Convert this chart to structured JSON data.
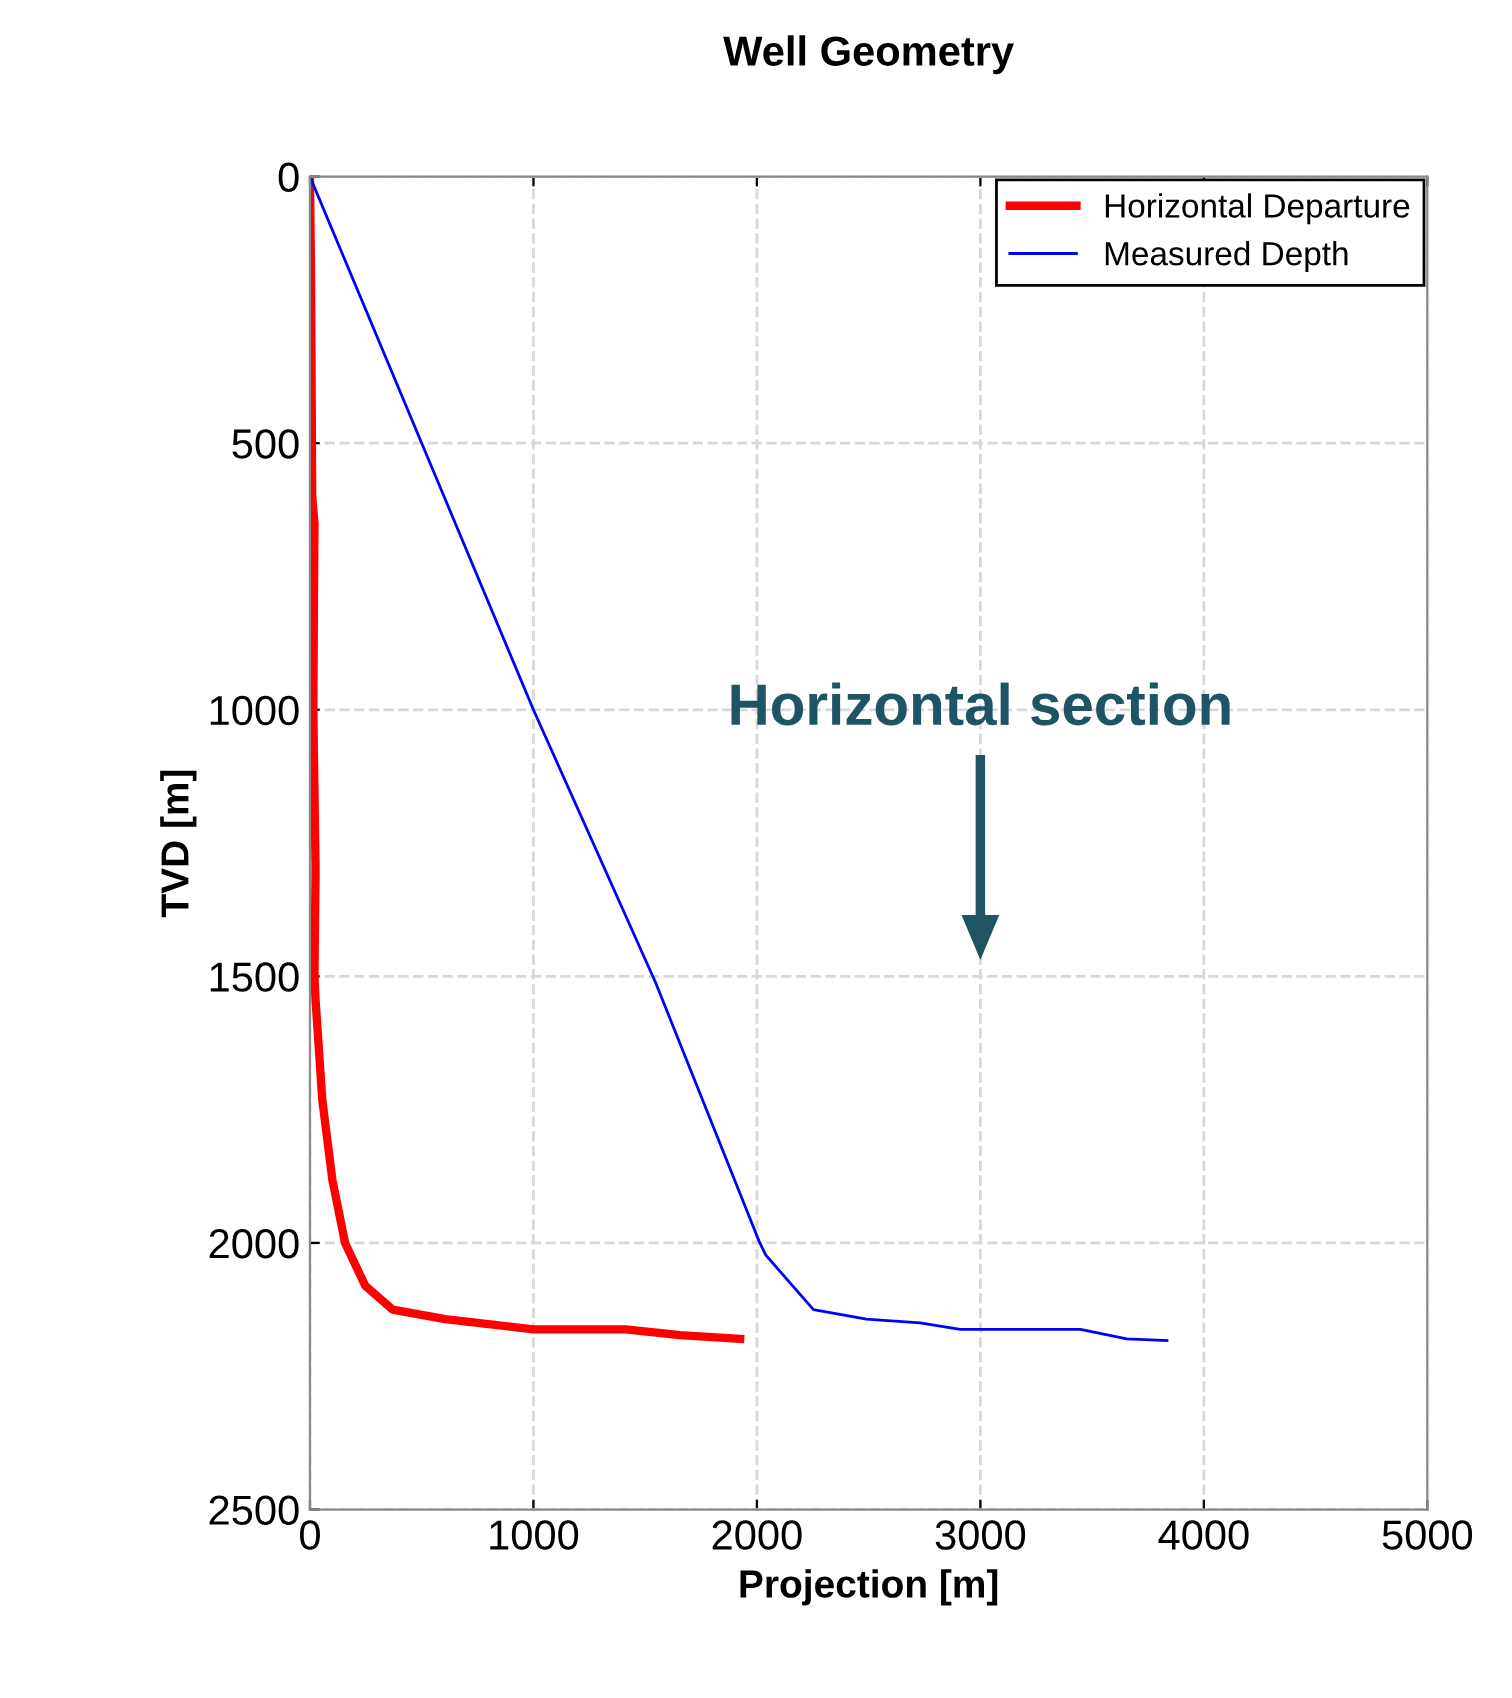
{
  "chart_data": {
    "type": "line",
    "title": "Well Geometry",
    "xlabel": "Projection [m]",
    "ylabel": "TVD [m]",
    "xlim": [
      0,
      5000
    ],
    "xticks": [
      0,
      1000,
      2000,
      3000,
      4000,
      5000
    ],
    "ylim": [
      2500,
      0
    ],
    "yticks": [
      0,
      500,
      1000,
      1500,
      2000,
      2500
    ],
    "grid": true,
    "legend": "top right",
    "line_style": "solid",
    "annotations": [
      "Horizontal section"
    ],
    "series": [
      {
        "name": "Horizontal Departure",
        "color": "#ff0000",
        "x": [
          0,
          5,
          10,
          20,
          15,
          25,
          20,
          25,
          55,
          100,
          157,
          247,
          370,
          605,
          1000,
          1413,
          1655,
          1925
        ],
        "values": [
          0,
          200,
          600,
          650,
          1000,
          1300,
          1500,
          1544,
          1731,
          1881,
          2000,
          2080,
          2125,
          2143,
          2162,
          2162,
          2173,
          2180
        ]
      },
      {
        "name": "Measured Depth",
        "color": "#0000ff",
        "x": [
          0,
          1000,
          1547,
          2013,
          2040,
          2253,
          2490,
          2730,
          2910,
          3448,
          3655,
          3835
        ],
        "values": [
          0,
          1000,
          1512,
          2000,
          2023,
          2125,
          2143,
          2150,
          2162,
          2162,
          2180,
          2183
        ]
      }
    ]
  }
}
